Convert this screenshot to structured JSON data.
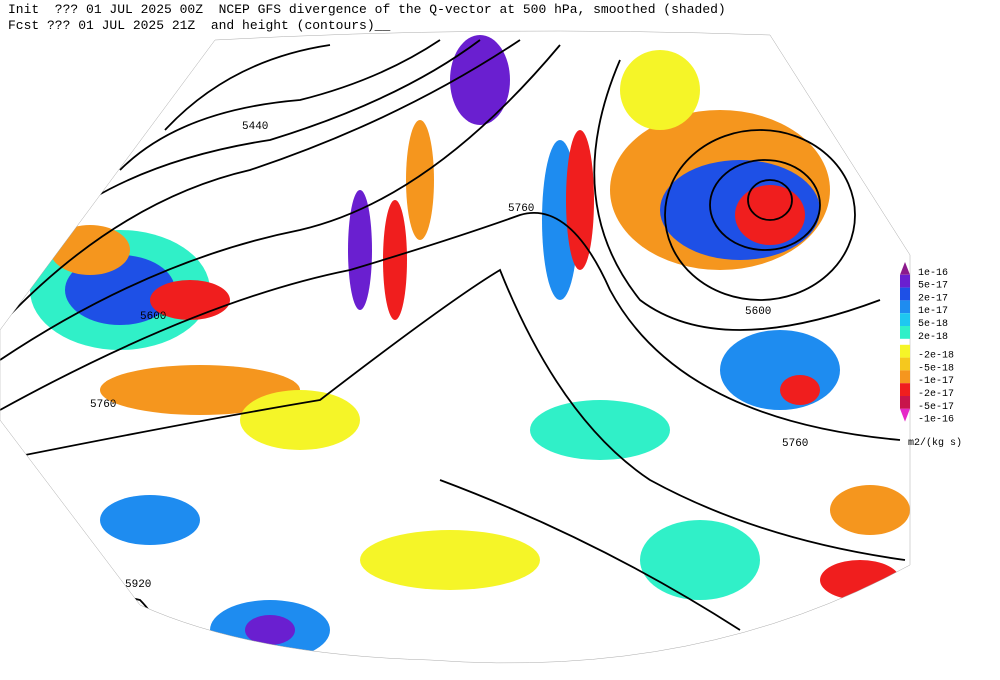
{
  "header": {
    "line1": "Init  ??? 01 JUL 2025 00Z  NCEP GFS divergence of the Q-vector at 500 hPa, smoothed (shaded)",
    "line2": "Fcst ??? 01 JUL 2025 21Z  and height (contours)__"
  },
  "contour_labels": [
    "5440",
    "5760",
    "5600",
    "5600",
    "5760",
    "5760",
    "5920"
  ],
  "legend": {
    "unit": "m2/(kg s)",
    "items": [
      {
        "label": "1e-16",
        "color": "#8b1a8b"
      },
      {
        "label": "5e-17",
        "color": "#6a1fd0"
      },
      {
        "label": "2e-17",
        "color": "#1e50e6"
      },
      {
        "label": "1e-17",
        "color": "#1e8cf0"
      },
      {
        "label": "5e-18",
        "color": "#1ec8f0"
      },
      {
        "label": "2e-18",
        "color": "#30f0c8"
      },
      {
        "label": "-2e-18",
        "color": "#f5f528"
      },
      {
        "label": "-5e-18",
        "color": "#f5c81e"
      },
      {
        "label": "-1e-17",
        "color": "#f5961e"
      },
      {
        "label": "-2e-17",
        "color": "#f01e1e"
      },
      {
        "label": "-5e-17",
        "color": "#c8144b"
      },
      {
        "label": "-1e-16",
        "color": "#e628c8"
      }
    ]
  }
}
